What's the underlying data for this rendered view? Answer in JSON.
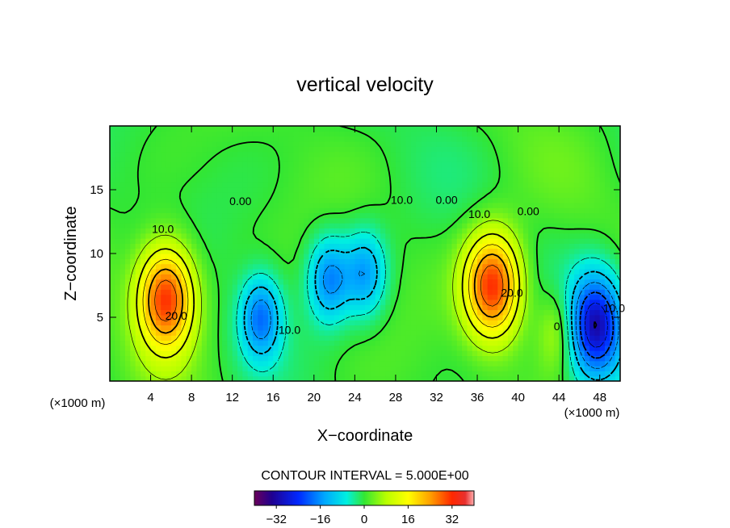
{
  "chart_data": {
    "type": "heatmap",
    "title": "vertical velocity",
    "xlabel": "X−coordinate",
    "ylabel": "Z−coordinate",
    "x_unit": "(×1000 m)",
    "y_unit": "(×1000 m)",
    "xlim": [
      0,
      50
    ],
    "ylim": [
      0,
      20
    ],
    "x_ticks": [
      4,
      8,
      12,
      16,
      20,
      24,
      28,
      32,
      36,
      40,
      44,
      48
    ],
    "y_ticks": [
      5,
      10,
      15
    ],
    "contour_interval_text": "CONTOUR INTERVAL = 5.000E+00",
    "contour_labels": [
      {
        "text": "10.0",
        "x": 5.2,
        "y": 11.6
      },
      {
        "text": "20.0",
        "x": 6.5,
        "y": 4.8
      },
      {
        "text": "0.00",
        "x": 12.8,
        "y": 13.8
      },
      {
        "text": "10.0",
        "x": 17.6,
        "y": 3.7
      },
      {
        "text": "10.0",
        "x": 28.6,
        "y": 13.9
      },
      {
        "text": "0.00",
        "x": 33.0,
        "y": 13.9
      },
      {
        "text": "10.0",
        "x": 36.2,
        "y": 12.8
      },
      {
        "text": "20.0",
        "x": 39.4,
        "y": 6.6
      },
      {
        "text": "0.00",
        "x": 41.0,
        "y": 13.0
      },
      {
        "text": "0",
        "x": 43.8,
        "y": 4.0
      },
      {
        "text": "10.0",
        "x": 49.4,
        "y": 5.4
      }
    ],
    "extrema": [
      {
        "x": 5.5,
        "z": 6.5,
        "value": 30
      },
      {
        "x": 14.8,
        "z": 5.0,
        "value": -18
      },
      {
        "x": 21.5,
        "z": 8.0,
        "value": -16
      },
      {
        "x": 25.0,
        "z": 8.5,
        "value": -14
      },
      {
        "x": 37.5,
        "z": 7.5,
        "value": 30
      },
      {
        "x": 44.0,
        "z": 4.0,
        "value": 8
      },
      {
        "x": 47.6,
        "z": 4.4,
        "value": -30
      }
    ],
    "colorbar": {
      "range": [
        -40,
        40
      ],
      "tick_values": [
        -32,
        -16,
        0,
        16,
        32
      ],
      "tick_labels": [
        "−32",
        "−16",
        "0",
        "16",
        "32"
      ]
    }
  }
}
